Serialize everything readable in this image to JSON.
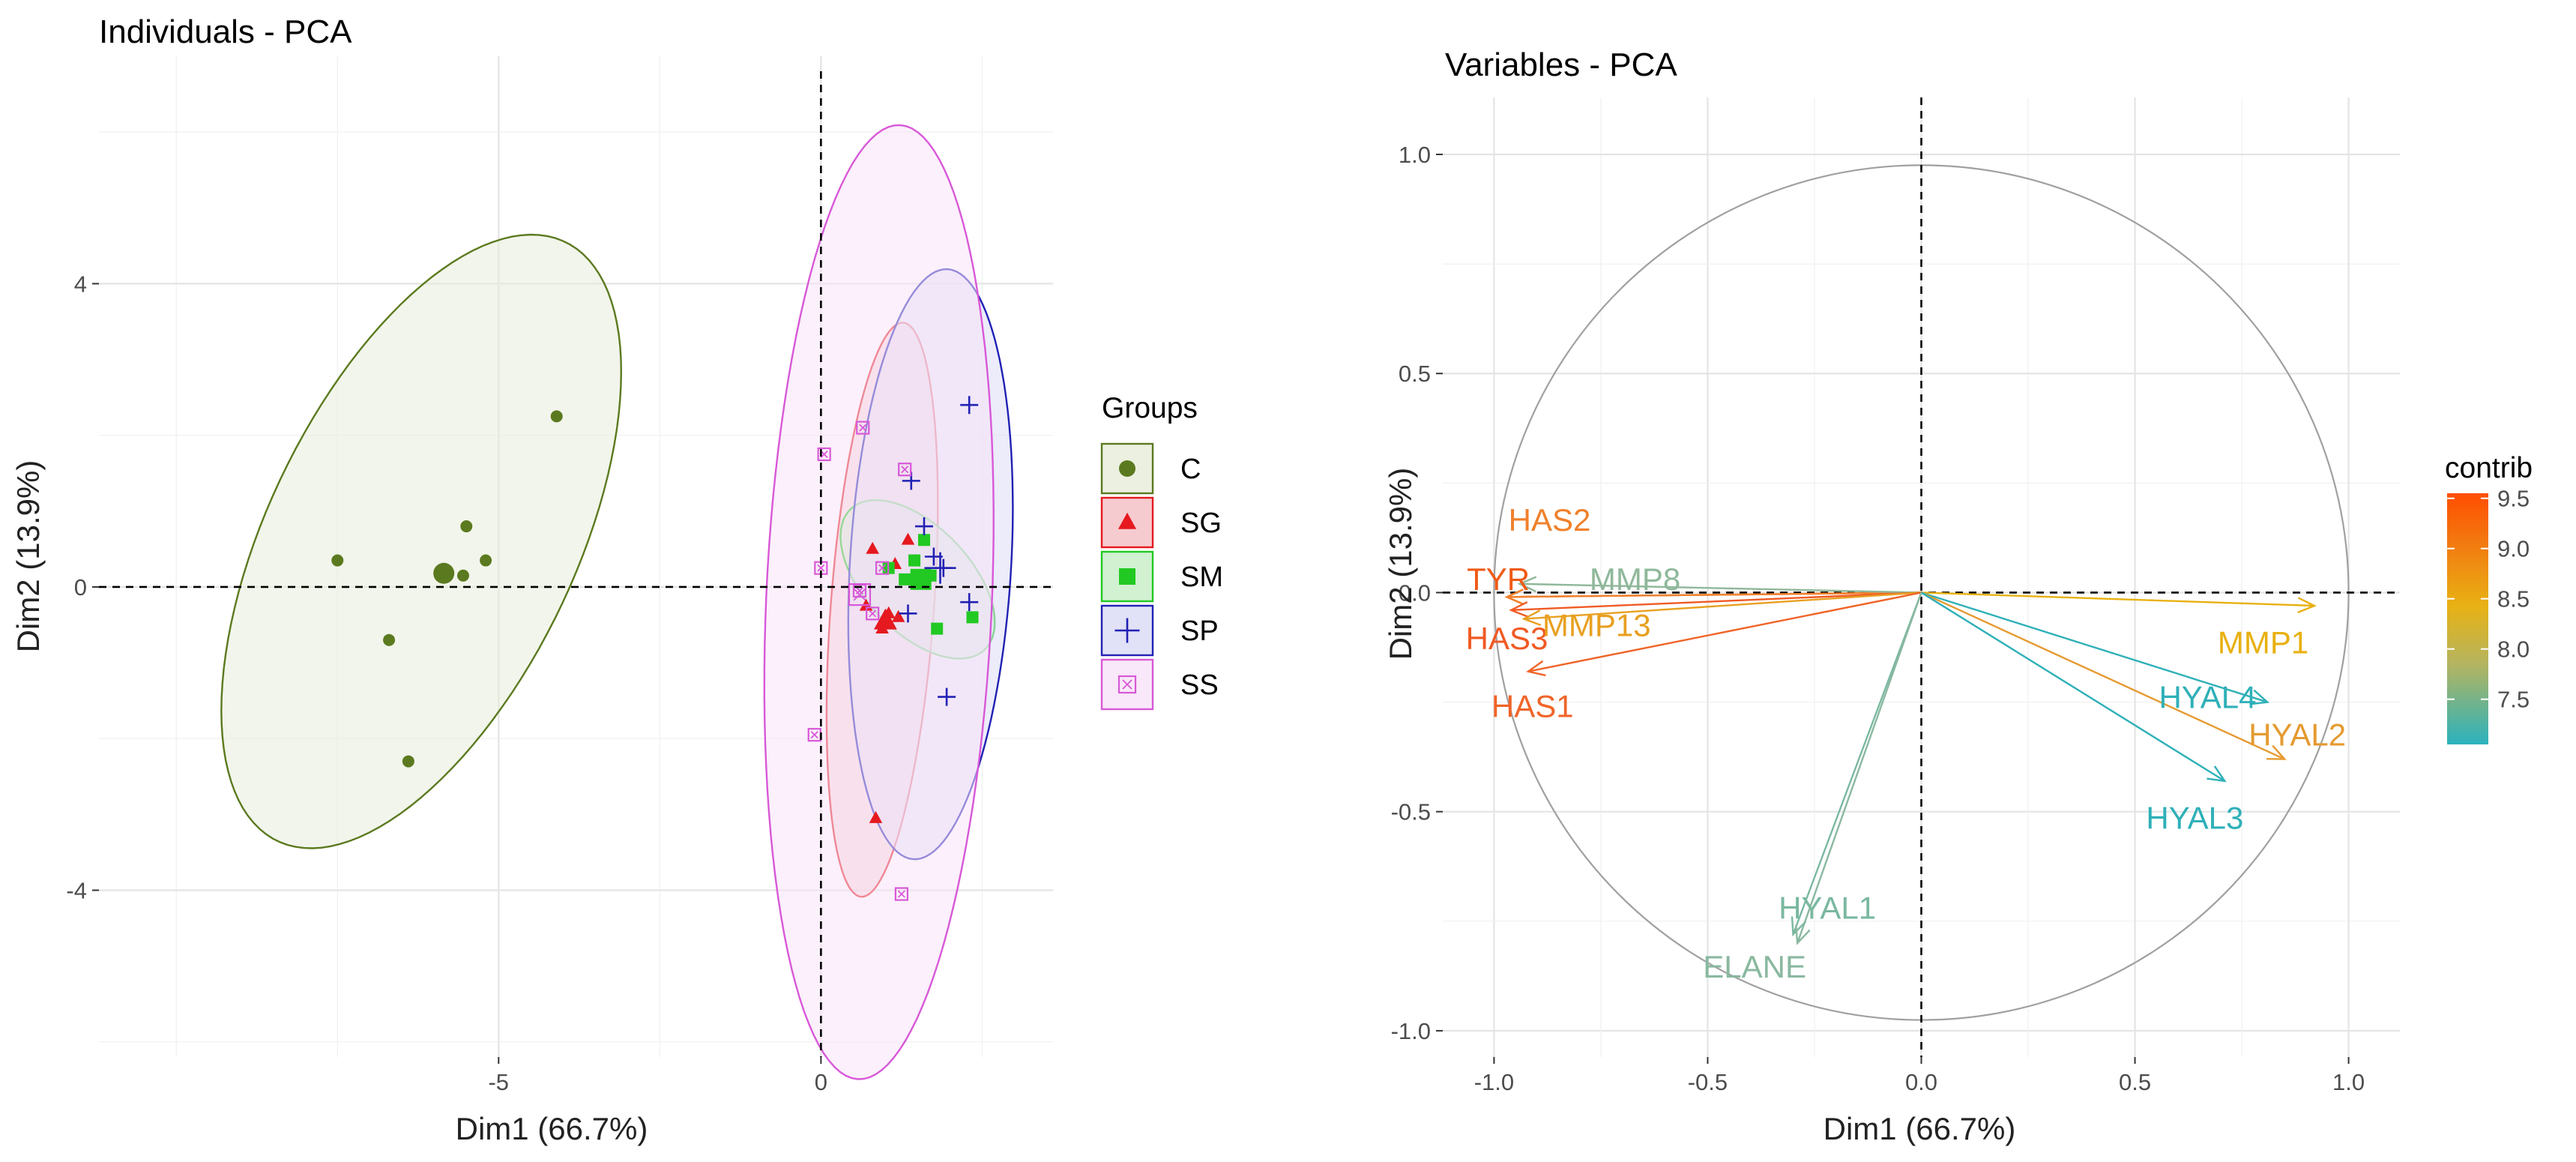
{
  "chart_data": [
    {
      "type": "scatter",
      "title": "Individuals - PCA",
      "xlabel": "Dim1 (66.7%)",
      "ylabel": "Dim2 (13.9%)",
      "xlim": [
        -11.2,
        3.6
      ],
      "ylim": [
        -6.2,
        7.0
      ],
      "xticks": [
        -5,
        0
      ],
      "yticks": [
        -4,
        0,
        4
      ],
      "xtick_labels": [
        "-5",
        "0"
      ],
      "ytick_labels": [
        "-4",
        "0",
        "4"
      ],
      "legend_title": "Groups",
      "series": [
        {
          "name": "C",
          "color": "#5b7a1f",
          "fill": "#e8eddb",
          "marker": "circle",
          "points": [
            [
              -7.5,
              0.35
            ],
            [
              -6.7,
              -0.7
            ],
            [
              -5.9,
              0.15
            ],
            [
              -5.55,
              0.15
            ],
            [
              -5.5,
              0.8
            ],
            [
              -5.2,
              0.35
            ],
            [
              -4.1,
              2.25
            ],
            [
              -6.4,
              -2.3
            ]
          ],
          "centroid": [
            -5.85,
            0.18
          ],
          "ellipse": {
            "cx": -6.2,
            "cy": 0.6,
            "rx": 4.55,
            "ry": 2.3,
            "angle": 58
          }
        },
        {
          "name": "SG",
          "color": "#e5191f",
          "fill": "#f4c2c8",
          "marker": "triangle",
          "points": [
            [
              0.8,
              0.5
            ],
            [
              1.35,
              0.62
            ],
            [
              1.05,
              -0.35
            ],
            [
              0.95,
              -0.55
            ],
            [
              1.2,
              -0.4
            ],
            [
              0.85,
              -3.05
            ],
            [
              0.7,
              -0.25
            ],
            [
              1.15,
              0.3
            ]
          ],
          "centroid": [
            1.0,
            -0.45
          ],
          "ellipse": {
            "cx": 0.95,
            "cy": -0.3,
            "rx": 3.8,
            "ry": 0.8,
            "angle": 85
          }
        },
        {
          "name": "SM",
          "color": "#22c922",
          "fill": "#c9efc9",
          "marker": "square",
          "points": [
            [
              1.05,
              0.25
            ],
            [
              1.45,
              0.35
            ],
            [
              1.6,
              0.62
            ],
            [
              1.8,
              -0.55
            ],
            [
              2.35,
              -0.4
            ],
            [
              1.7,
              0.15
            ],
            [
              1.55,
              0.05
            ],
            [
              1.3,
              0.1
            ]
          ],
          "centroid": [
            1.55,
            0.1
          ],
          "ellipse": {
            "cx": 1.5,
            "cy": 0.1,
            "rx": 1.4,
            "ry": 0.75,
            "angle": -38
          }
        },
        {
          "name": "SP",
          "color": "#2121b4",
          "fill": "#dcdcf6",
          "marker": "plus",
          "points": [
            [
              2.3,
              2.4
            ],
            [
              1.4,
              1.4
            ],
            [
              1.6,
              0.8
            ],
            [
              1.75,
              0.4
            ],
            [
              1.9,
              0.25
            ],
            [
              1.35,
              -0.35
            ],
            [
              2.3,
              -0.2
            ],
            [
              1.95,
              -1.45
            ]
          ],
          "centroid": [
            1.85,
            0.25
          ],
          "ellipse": {
            "cx": 1.7,
            "cy": 0.3,
            "rx": 3.9,
            "ry": 1.25,
            "angle": 86
          }
        },
        {
          "name": "SS",
          "color": "#d858d8",
          "fill": "#f8e4f8",
          "marker": "square-x",
          "points": [
            [
              0.05,
              1.75
            ],
            [
              0.65,
              2.1
            ],
            [
              1.3,
              1.55
            ],
            [
              0.95,
              0.25
            ],
            [
              0.0,
              0.25
            ],
            [
              0.8,
              -0.35
            ],
            [
              0.6,
              -0.05
            ],
            [
              -0.1,
              -1.95
            ],
            [
              1.25,
              -4.05
            ]
          ],
          "centroid": [
            0.6,
            -0.1
          ],
          "ellipse": {
            "cx": 0.9,
            "cy": -0.2,
            "rx": 6.3,
            "ry": 1.75,
            "angle": 87
          }
        }
      ]
    },
    {
      "type": "biplot",
      "title": "Variables - PCA",
      "xlabel": "Dim1 (66.7%)",
      "ylabel": "Dim2 (13.9%)",
      "xlim": [
        -1.12,
        1.12
      ],
      "ylim": [
        -1.06,
        1.13
      ],
      "xticks": [
        -1.0,
        -0.5,
        0.0,
        0.5,
        1.0
      ],
      "yticks": [
        -1.0,
        -0.5,
        0.0,
        0.5,
        1.0
      ],
      "xtick_labels": [
        "-1.0",
        "-0.5",
        "0.0",
        "0.5",
        "1.0"
      ],
      "ytick_labels": [
        "-1.0",
        "-0.5",
        "0.0",
        "0.5",
        "1.0"
      ],
      "legend_title": "contrib",
      "legend_scale": [
        {
          "value": 9.5,
          "label": "9.5"
        },
        {
          "value": 9.0,
          "label": "9.0"
        },
        {
          "value": 8.5,
          "label": "8.5"
        },
        {
          "value": 8.0,
          "label": "8.0"
        },
        {
          "value": 7.5,
          "label": "7.5"
        }
      ],
      "contrib_range": [
        7.05,
        9.55
      ],
      "variables": [
        {
          "name": "TYR",
          "x": -0.97,
          "y": -0.01,
          "contrib": 9.5,
          "color": "#f05a16",
          "label_x": -0.99,
          "label_y": 0.03
        },
        {
          "name": "HAS2",
          "x": -0.97,
          "y": -0.01,
          "contrib": 8.9,
          "color": "#f0812c",
          "label_x": -0.87,
          "label_y": 0.165
        },
        {
          "name": "MMP8",
          "x": -0.94,
          "y": 0.02,
          "contrib": 7.45,
          "color": "#8fb89a",
          "label_x": -0.67,
          "label_y": 0.03
        },
        {
          "name": "HAS3",
          "x": -0.96,
          "y": -0.04,
          "contrib": 9.3,
          "color": "#f05a24",
          "label_x": -0.97,
          "label_y": -0.105
        },
        {
          "name": "MMP13",
          "x": -0.93,
          "y": -0.06,
          "contrib": 8.3,
          "color": "#e8a020",
          "label_x": -0.76,
          "label_y": -0.075
        },
        {
          "name": "HAS1",
          "x": -0.92,
          "y": -0.18,
          "contrib": 9.2,
          "color": "#f06428",
          "label_x": -0.91,
          "label_y": -0.26
        },
        {
          "name": "MMP1",
          "x": 0.92,
          "y": -0.03,
          "contrib": 8.1,
          "color": "#e8b010",
          "label_x": 0.8,
          "label_y": -0.115
        },
        {
          "name": "HYAL4",
          "x": 0.81,
          "y": -0.25,
          "contrib": 7.2,
          "color": "#2fb0b8",
          "label_x": 0.67,
          "label_y": -0.24
        },
        {
          "name": "HYAL2",
          "x": 0.85,
          "y": -0.38,
          "contrib": 8.6,
          "color": "#e59a30",
          "label_x": 0.88,
          "label_y": -0.325
        },
        {
          "name": "HYAL3",
          "x": 0.71,
          "y": -0.43,
          "contrib": 7.2,
          "color": "#2fb0b8",
          "label_x": 0.64,
          "label_y": -0.515
        },
        {
          "name": "HYAL1",
          "x": -0.3,
          "y": -0.78,
          "contrib": 7.4,
          "color": "#7ab8a0",
          "label_x": -0.22,
          "label_y": -0.72
        },
        {
          "name": "ELANE",
          "x": -0.29,
          "y": -0.8,
          "contrib": 7.45,
          "color": "#8ab8a0",
          "label_x": -0.39,
          "label_y": -0.855
        }
      ]
    }
  ]
}
